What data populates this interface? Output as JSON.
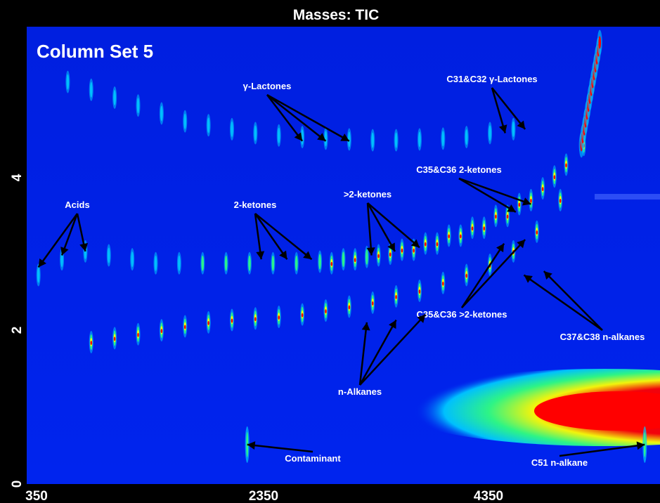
{
  "chart_data": {
    "type": "heatmap",
    "title": "Masses: TIC",
    "panel_label": "Column Set 5",
    "x_ticks": [
      "350",
      "2350",
      "4350"
    ],
    "y_ticks": [
      "0",
      "2",
      "4"
    ],
    "xlim": [
      350,
      5750
    ],
    "ylim": [
      0,
      5.8
    ],
    "colormap": [
      "#0024ee",
      "#00c8ff",
      "#30ff80",
      "#ffff00",
      "#ff0000"
    ],
    "series": [
      {
        "name": "γ-Lactones",
        "x": [
          700,
          900,
          1100,
          1300,
          1500,
          1700,
          1900,
          2100,
          2300,
          2500,
          2700,
          2900,
          3100,
          3300,
          3500,
          3700,
          3900,
          4100,
          4300,
          4500
        ],
        "y": [
          5.1,
          5.0,
          4.9,
          4.8,
          4.7,
          4.6,
          4.55,
          4.5,
          4.45,
          4.42,
          4.4,
          4.38,
          4.37,
          4.36,
          4.36,
          4.37,
          4.38,
          4.4,
          4.45,
          4.5
        ]
      },
      {
        "name": "Acids",
        "x": [
          450,
          650,
          850,
          1050,
          1250,
          1450,
          1650
        ],
        "y": [
          2.65,
          2.85,
          2.95,
          2.9,
          2.85,
          2.8,
          2.8
        ]
      },
      {
        "name": "2-ketones",
        "x": [
          1850,
          2050,
          2250,
          2450,
          2650,
          2850,
          3050,
          3250,
          3450,
          3650,
          3850,
          4050,
          4250,
          4450,
          4650,
          4850
        ],
        "y": [
          2.8,
          2.8,
          2.8,
          2.8,
          2.8,
          2.82,
          2.85,
          2.88,
          2.92,
          2.97,
          3.05,
          3.15,
          3.25,
          3.4,
          3.6,
          3.9
        ]
      },
      {
        "name": ">2-ketones",
        "x": [
          2950,
          3150,
          3350,
          3550,
          3750,
          3950,
          4150,
          4350,
          4550,
          4750,
          4950
        ],
        "y": [
          2.8,
          2.85,
          2.9,
          2.97,
          3.05,
          3.15,
          3.25,
          3.4,
          3.55,
          3.75,
          4.05
        ]
      },
      {
        "name": "n-Alkanes",
        "x": [
          900,
          1100,
          1300,
          1500,
          1700,
          1900,
          2100,
          2300,
          2500,
          2700,
          2900,
          3100,
          3300,
          3500,
          3700,
          3900,
          4100,
          4300,
          4500,
          4700,
          4900,
          5100
        ],
        "y": [
          1.8,
          1.85,
          1.9,
          1.95,
          2.0,
          2.05,
          2.08,
          2.1,
          2.12,
          2.15,
          2.2,
          2.25,
          2.3,
          2.38,
          2.45,
          2.55,
          2.65,
          2.78,
          2.95,
          3.2,
          3.6,
          4.3
        ]
      }
    ],
    "annotations": [
      {
        "text": "γ-Lactones",
        "arrows_to": [
          [
            2700,
            4.35
          ],
          [
            2900,
            4.35
          ],
          [
            3100,
            4.35
          ]
        ]
      },
      {
        "text": "C31&C32 γ-Lactones",
        "arrows_to": [
          [
            4430,
            4.45
          ],
          [
            4600,
            4.5
          ]
        ]
      },
      {
        "text": "Acids",
        "arrows_to": [
          [
            450,
            2.75
          ],
          [
            650,
            2.9
          ],
          [
            850,
            2.95
          ]
        ]
      },
      {
        "text": "2-ketones",
        "arrows_to": [
          [
            2350,
            2.85
          ],
          [
            2570,
            2.85
          ],
          [
            2780,
            2.85
          ]
        ]
      },
      {
        "text": ">2-ketones",
        "arrows_to": [
          [
            3290,
            2.9
          ],
          [
            3490,
            2.95
          ],
          [
            3700,
            3.0
          ]
        ]
      },
      {
        "text": "C35&C36 2-ketones",
        "arrows_to": [
          [
            4520,
            3.45
          ],
          [
            4650,
            3.55
          ]
        ]
      },
      {
        "text": "C35&C36 >2-ketones",
        "arrows_to": [
          [
            4420,
            3.05
          ],
          [
            4600,
            3.1
          ]
        ]
      },
      {
        "text": "C37&C38 n-alkanes",
        "arrows_to": [
          [
            4590,
            2.65
          ],
          [
            4760,
            2.7
          ]
        ]
      },
      {
        "text": "n-Alkanes",
        "arrows_to": [
          [
            3250,
            2.05
          ],
          [
            3500,
            2.08
          ],
          [
            3750,
            2.15
          ]
        ]
      },
      {
        "text": "Contaminant",
        "arrows_to": [
          [
            2230,
            0.5
          ]
        ]
      },
      {
        "text": "C51 n-alkane",
        "arrows_to": [
          [
            5620,
            0.5
          ]
        ]
      }
    ]
  }
}
